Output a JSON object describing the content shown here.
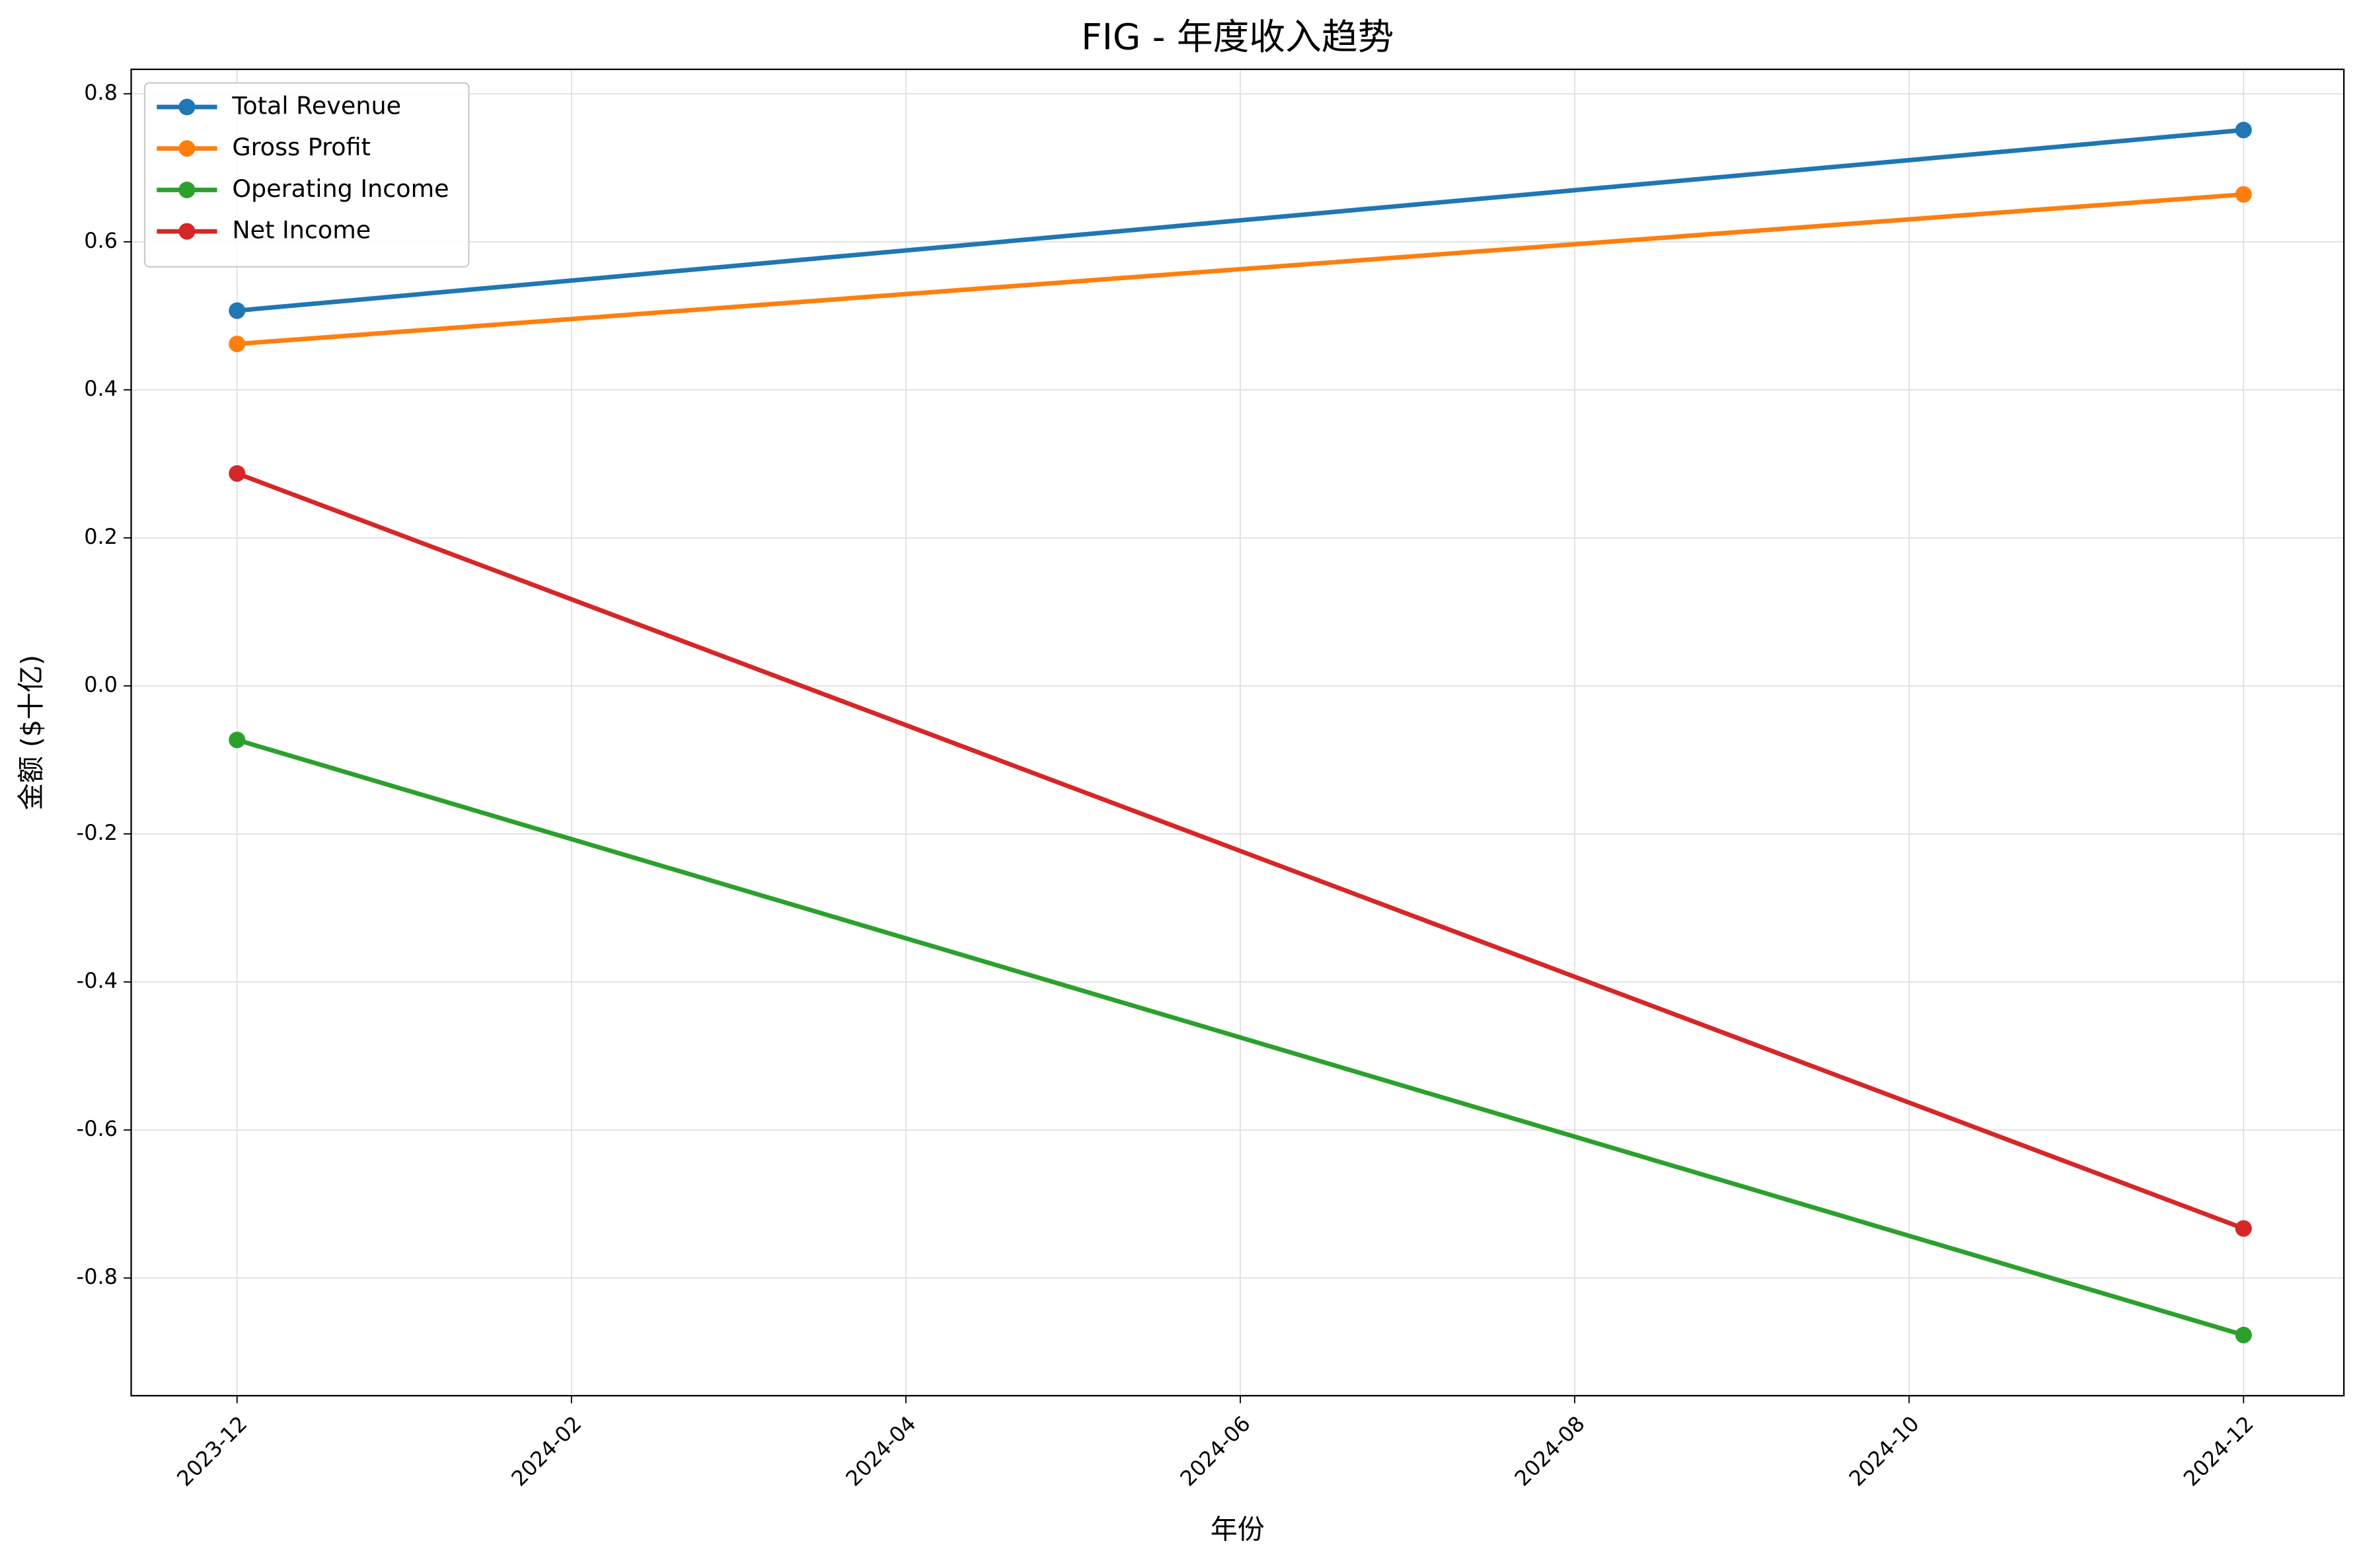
{
  "chart_data": {
    "type": "line",
    "title": "FIG - 年度收入趋势",
    "x_label": "年份",
    "y_label": "金额 ($十亿)",
    "x": [
      "2023-12",
      "2024-12"
    ],
    "series": [
      {
        "name": "Total Revenue",
        "color": "#1f77b4",
        "values": [
          0.507,
          0.751
        ]
      },
      {
        "name": "Gross Profit",
        "color": "#ff7f0e",
        "values": [
          0.462,
          0.664
        ]
      },
      {
        "name": "Operating Income",
        "color": "#2ca02c",
        "values": [
          -0.073,
          -0.877
        ]
      },
      {
        "name": "Net Income",
        "color": "#d62728",
        "values": [
          0.287,
          -0.733
        ]
      }
    ],
    "xlim": [
      "2023-11-12",
      "2024-12-19"
    ],
    "xticks": [
      "2023-12",
      "2024-02",
      "2024-04",
      "2024-06",
      "2024-08",
      "2024-10",
      "2024-12"
    ],
    "ylim": [
      -0.959,
      0.833
    ],
    "yticks": [
      -0.8,
      -0.6,
      -0.4,
      -0.2,
      {
        "value": 0,
        "label": "0.0"
      },
      0.2,
      0.4,
      0.6,
      0.8
    ],
    "grid": true,
    "legend": "upper-left"
  }
}
